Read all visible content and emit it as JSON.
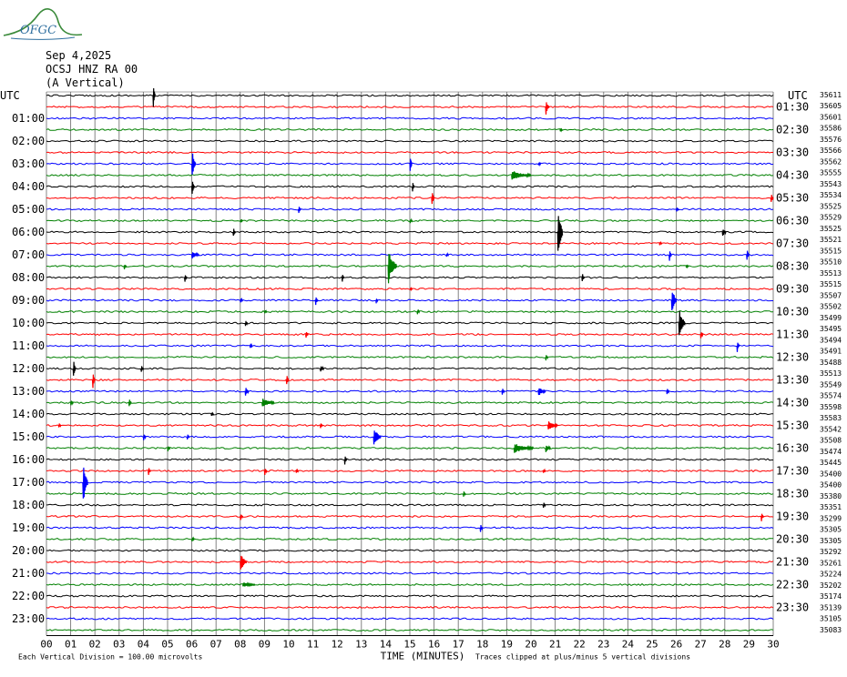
{
  "header": {
    "logo_text": "OFGC",
    "date": "Sep 4,2025",
    "station": "OCSJ HNZ RA 00",
    "component": "(A Vertical)"
  },
  "chart_data": {
    "type": "line",
    "chart_kind": "helicorder",
    "left_axis_title": "UTC",
    "right_axis_title": "UTC",
    "left_hours": [
      "01:00",
      "02:00",
      "03:00",
      "04:00",
      "05:00",
      "06:00",
      "07:00",
      "08:00",
      "09:00",
      "10:00",
      "11:00",
      "12:00",
      "13:00",
      "14:00",
      "15:00",
      "16:00",
      "17:00",
      "18:00",
      "19:00",
      "20:00",
      "21:00",
      "22:00",
      "23:00"
    ],
    "right_hours": [
      "01:30",
      "02:30",
      "03:30",
      "04:30",
      "05:30",
      "06:30",
      "07:30",
      "08:30",
      "09:30",
      "10:30",
      "11:30",
      "12:30",
      "13:30",
      "14:30",
      "15:30",
      "16:30",
      "17:30",
      "18:30",
      "19:30",
      "20:30",
      "21:30",
      "22:30",
      "23:30"
    ],
    "trace_values": [
      "35611",
      "35605",
      "35601",
      "35586",
      "35576",
      "35566",
      "35562",
      "35555",
      "35543",
      "35534",
      "35525",
      "35529",
      "35525",
      "35521",
      "35515",
      "35510",
      "35513",
      "35515",
      "35507",
      "35502",
      "35499",
      "35495",
      "35494",
      "35491",
      "35488",
      "35513",
      "35549",
      "35574",
      "35598",
      "35583",
      "35542",
      "35508",
      "35474",
      "35445",
      "35400",
      "35400",
      "35380",
      "35351",
      "35299",
      "35305",
      "35305",
      "35292",
      "35261",
      "35224",
      "35202",
      "35174",
      "35139",
      "35105",
      "35083"
    ],
    "x_ticks": [
      "00",
      "01",
      "02",
      "03",
      "04",
      "05",
      "06",
      "07",
      "08",
      "09",
      "10",
      "11",
      "12",
      "13",
      "14",
      "15",
      "16",
      "17",
      "18",
      "19",
      "20",
      "21",
      "22",
      "23",
      "24",
      "25",
      "26",
      "27",
      "28",
      "29",
      "30"
    ],
    "xlabel": "TIME (MINUTES)",
    "note_left": "Each Vertical Division =  100.00 microvolts",
    "note_right": "Traces clipped at plus/minus 5 vertical divisions",
    "xlim": [
      0,
      30
    ],
    "trace_count": 48,
    "trace_colors": [
      "#000000",
      "#ff0000",
      "#0000ff",
      "#008000"
    ],
    "grid": true
  }
}
